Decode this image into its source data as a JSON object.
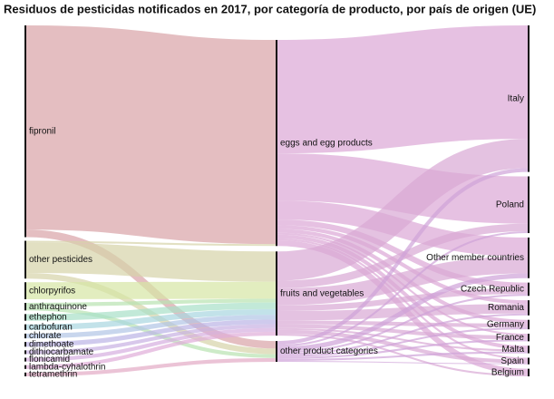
{
  "chart_data": {
    "type": "sankey",
    "title": "Residuos de pesticidas notificados en 2017, por categoría de producto, por país de origen (UE)",
    "nodes": [
      {
        "name": "fipronil",
        "color": "#d9a3a6",
        "column": 0
      },
      {
        "name": "other pesticides",
        "color": "#d6d3a8",
        "column": 0
      },
      {
        "name": "chlorpyrifos",
        "color": "#d5e6a4",
        "column": 0
      },
      {
        "name": "anthraquinone",
        "color": "#b8e2b0",
        "column": 0
      },
      {
        "name": "ethephon",
        "color": "#a8e0c8",
        "column": 0
      },
      {
        "name": "carbofuran",
        "color": "#a8d6e0",
        "column": 0
      },
      {
        "name": "chlorate",
        "color": "#b0c4e6",
        "column": 0
      },
      {
        "name": "dimethoate",
        "color": "#bab4e6",
        "column": 0
      },
      {
        "name": "dithiocarbamate",
        "color": "#c8b0e2",
        "column": 0
      },
      {
        "name": "flonicamid",
        "color": "#d6aee0",
        "column": 0
      },
      {
        "name": "lambda-cyhalothrin",
        "color": "#e0acd8",
        "column": 0
      },
      {
        "name": "tetramethrin",
        "color": "#e2aac4",
        "column": 0
      },
      {
        "name": "eggs and egg products",
        "color": "#dba6d6",
        "column": 1
      },
      {
        "name": "fruits and vegetables",
        "color": "#d8a8d4",
        "column": 1
      },
      {
        "name": "other product categories",
        "color": "#cfa2d8",
        "column": 1
      },
      {
        "name": "Italy",
        "color": "#dca8da",
        "column": 2
      },
      {
        "name": "Poland",
        "color": "#dca8da",
        "column": 2
      },
      {
        "name": "Other member countries",
        "color": "#dca8da",
        "column": 2
      },
      {
        "name": "Czech Republic",
        "color": "#dca8da",
        "column": 2
      },
      {
        "name": "Romania",
        "color": "#dca8da",
        "column": 2
      },
      {
        "name": "Germany",
        "color": "#dca8da",
        "column": 2
      },
      {
        "name": "France",
        "color": "#dca8da",
        "column": 2
      },
      {
        "name": "Malta",
        "color": "#dca8da",
        "column": 2
      },
      {
        "name": "Spain",
        "color": "#dca8da",
        "column": 2
      },
      {
        "name": "Belgium",
        "color": "#dca8da",
        "column": 2
      }
    ],
    "links": [
      {
        "source": 0,
        "target": 12,
        "value": 216
      },
      {
        "source": 0,
        "target": 14,
        "value": 8
      },
      {
        "source": 1,
        "target": 12,
        "value": 2
      },
      {
        "source": 1,
        "target": 13,
        "value": 32
      },
      {
        "source": 1,
        "target": 14,
        "value": 6
      },
      {
        "source": 2,
        "target": 13,
        "value": 18
      },
      {
        "source": 3,
        "target": 13,
        "value": 4
      },
      {
        "source": 3,
        "target": 14,
        "value": 4
      },
      {
        "source": 4,
        "target": 13,
        "value": 7
      },
      {
        "source": 5,
        "target": 13,
        "value": 6
      },
      {
        "source": 6,
        "target": 13,
        "value": 5
      },
      {
        "source": 7,
        "target": 13,
        "value": 5
      },
      {
        "source": 8,
        "target": 13,
        "value": 4
      },
      {
        "source": 9,
        "target": 13,
        "value": 4
      },
      {
        "source": 10,
        "target": 13,
        "value": 4
      },
      {
        "source": 11,
        "target": 14,
        "value": 4
      },
      {
        "source": 12,
        "target": 15,
        "value": 120
      },
      {
        "source": 12,
        "target": 16,
        "value": 50
      },
      {
        "source": 12,
        "target": 17,
        "value": 20
      },
      {
        "source": 12,
        "target": 18,
        "value": 6
      },
      {
        "source": 12,
        "target": 19,
        "value": 4
      },
      {
        "source": 12,
        "target": 20,
        "value": 4
      },
      {
        "source": 12,
        "target": 21,
        "value": 2
      },
      {
        "source": 12,
        "target": 22,
        "value": 4
      },
      {
        "source": 12,
        "target": 23,
        "value": 2
      },
      {
        "source": 12,
        "target": 24,
        "value": 6
      },
      {
        "source": 13,
        "target": 15,
        "value": 31
      },
      {
        "source": 13,
        "target": 16,
        "value": 8
      },
      {
        "source": 13,
        "target": 17,
        "value": 18
      },
      {
        "source": 13,
        "target": 18,
        "value": 6
      },
      {
        "source": 13,
        "target": 19,
        "value": 10
      },
      {
        "source": 13,
        "target": 20,
        "value": 4
      },
      {
        "source": 13,
        "target": 21,
        "value": 4
      },
      {
        "source": 13,
        "target": 22,
        "value": 2
      },
      {
        "source": 13,
        "target": 23,
        "value": 4
      },
      {
        "source": 13,
        "target": 24,
        "value": 2
      },
      {
        "source": 14,
        "target": 15,
        "value": 4
      },
      {
        "source": 14,
        "target": 16,
        "value": 2
      },
      {
        "source": 14,
        "target": 17,
        "value": 5
      },
      {
        "source": 14,
        "target": 18,
        "value": 2
      },
      {
        "source": 14,
        "target": 19,
        "value": 2
      },
      {
        "source": 14,
        "target": 20,
        "value": 2
      },
      {
        "source": 14,
        "target": 21,
        "value": 2
      },
      {
        "source": 14,
        "target": 22,
        "value": 2
      },
      {
        "source": 14,
        "target": 23,
        "value": 1
      }
    ]
  }
}
